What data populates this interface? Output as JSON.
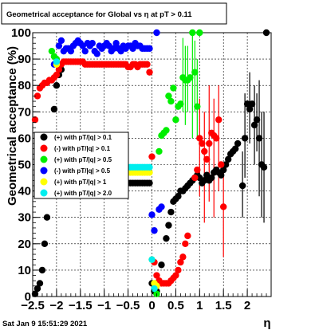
{
  "chart_data": {
    "type": "scatter",
    "title": "Geometrical acceptance for Global vs  η at pT > 0.11",
    "xlabel": "η",
    "ylabel": "Geometrical acceptance (%)",
    "xlim": [
      -2.5,
      2.5
    ],
    "ylim": [
      0,
      100
    ],
    "xticks": [
      -2.5,
      -2,
      -1.5,
      -1,
      -0.5,
      0,
      0.5,
      1,
      1.5,
      2
    ],
    "xtick_labels": [
      "−2.5",
      "−2",
      "−1.5",
      "−1",
      "−0.5",
      "0",
      "0.5",
      "1",
      "1.5",
      "2"
    ],
    "yticks": [
      0,
      10,
      20,
      30,
      40,
      50,
      60,
      70,
      80,
      90,
      100
    ],
    "ytick_labels": [
      "0",
      "10",
      "20",
      "30",
      "40",
      "50",
      "60",
      "70",
      "80",
      "90",
      "100"
    ],
    "grid": true,
    "legend_position": "left-middle",
    "series": [
      {
        "name": "(+) with pT/|q| > 0.1",
        "color": "#000000",
        "x": [
          -2.45,
          -2.4,
          -2.35,
          -2.3,
          -2.25,
          -2.2,
          -2.15,
          -2.1,
          -2.05,
          -2.0,
          -1.95,
          -1.9,
          -1.0,
          -0.9,
          -0.8,
          -0.7,
          -0.6,
          -0.5,
          -0.45,
          -0.4,
          -0.35,
          -0.3,
          -0.25,
          -0.2,
          -0.15,
          -0.1,
          -0.05,
          0.0,
          0.05,
          0.1,
          0.2,
          0.3,
          0.35,
          0.4,
          0.45,
          0.5,
          0.55,
          0.6,
          0.65,
          0.7,
          0.75,
          0.8,
          0.85,
          0.9,
          0.95,
          1.0,
          1.05,
          1.1,
          1.15,
          1.2,
          1.25,
          1.3,
          1.35,
          1.4,
          1.45,
          1.5,
          1.55,
          1.6,
          1.65,
          1.7,
          1.75,
          1.8,
          1.9,
          1.95,
          2.0,
          2.05,
          2.1,
          2.15,
          2.2,
          2.25,
          2.3,
          2.35,
          2.4
        ],
        "y": [
          1,
          3,
          5,
          10,
          20,
          30,
          45,
          60,
          71,
          80,
          84,
          86,
          44,
          44,
          44,
          44,
          44,
          43,
          43,
          43,
          43,
          43,
          43,
          43,
          43,
          43,
          43,
          5,
          2,
          2,
          12,
          22,
          27,
          32,
          36,
          37,
          38,
          40,
          40,
          41,
          42,
          43,
          44,
          45,
          46,
          45,
          43,
          44,
          46,
          44,
          45,
          47,
          48,
          47,
          46,
          48,
          50,
          52,
          54,
          55,
          56,
          58,
          42,
          60,
          73,
          71,
          73,
          65,
          67,
          60,
          50,
          49,
          100
        ]
      },
      {
        "name": "(-) with pT/|q| > 0.1",
        "color": "#ff0000",
        "x": [
          -2.45,
          -2.4,
          -2.35,
          -2.3,
          -2.25,
          -2.2,
          -2.15,
          -2.1,
          -2.05,
          -2.0,
          -1.95,
          -1.9,
          -1.85,
          -1.8,
          -1.75,
          -1.7,
          -1.65,
          -1.6,
          -1.55,
          -1.5,
          -1.45,
          -1.4,
          -1.35,
          -1.3,
          -1.25,
          -1.2,
          -1.15,
          -1.1,
          -1.05,
          -1.0,
          -0.95,
          -0.9,
          -0.85,
          -0.8,
          -0.75,
          -0.7,
          -0.65,
          -0.6,
          -0.55,
          -0.5,
          -0.45,
          -0.4,
          -0.35,
          -0.3,
          -0.25,
          -0.2,
          -0.15,
          -0.1,
          -0.05,
          0.0,
          0.05,
          0.1,
          0.15,
          0.2,
          0.25,
          0.3,
          0.35,
          0.4,
          0.45,
          0.5,
          0.55,
          0.6,
          0.65,
          0.7,
          0.75,
          0.9,
          0.95,
          1.0,
          1.05,
          1.1,
          1.15,
          1.2,
          1.25,
          1.3,
          1.35,
          1.4,
          1.45,
          1.5
        ],
        "y": [
          67,
          76,
          79,
          80,
          81,
          81,
          82,
          82,
          83,
          84,
          86,
          88,
          89,
          89,
          89,
          89,
          89,
          89,
          89,
          89,
          89,
          88,
          88,
          88,
          88,
          88,
          88,
          88,
          88,
          88,
          88,
          88,
          88,
          88,
          88,
          88,
          88,
          88,
          88,
          87,
          87,
          88,
          88,
          87,
          88,
          88,
          88,
          88,
          85,
          53,
          13,
          8,
          6,
          5,
          5,
          5,
          5,
          6,
          7,
          8,
          10,
          13,
          15,
          20,
          23,
          45,
          48,
          60,
          58,
          55,
          52,
          58,
          62,
          61,
          60,
          67,
          50,
          34
        ]
      },
      {
        "name": "(+) with pT/|q| > 0.5",
        "color": "#00ee00",
        "x": [
          -2.1,
          -2.05,
          -2.0,
          0.05,
          0.1,
          0.15,
          0.2,
          0.25,
          0.3,
          0.35,
          0.4,
          0.45,
          0.5,
          0.55,
          0.6,
          0.65,
          0.7,
          0.75,
          0.8,
          0.85,
          0.9,
          0.95,
          1.0
        ],
        "y": [
          93,
          91,
          90,
          3,
          1,
          55,
          61,
          62,
          63,
          76,
          74,
          79,
          67,
          72,
          73,
          83,
          82,
          82,
          83,
          100,
          85,
          72,
          100
        ]
      },
      {
        "name": "(-) with pT/|q| > 0.5",
        "color": "#0000ff",
        "x": [
          -2.05,
          -1.95,
          -1.9,
          -1.85,
          -1.8,
          -1.75,
          -1.7,
          -1.65,
          -1.6,
          -1.55,
          -1.5,
          -1.45,
          -1.4,
          -1.35,
          -1.3,
          -1.25,
          -1.2,
          -1.15,
          -1.1,
          -1.05,
          -1.0,
          -0.95,
          -0.9,
          -0.85,
          -0.8,
          -0.75,
          -0.7,
          -0.65,
          -0.6,
          -0.55,
          -0.5,
          -0.45,
          -0.4,
          -0.35,
          -0.3,
          -0.25,
          -0.2,
          -0.15,
          -0.1,
          -0.05,
          0.0,
          0.05,
          0.1,
          0.15,
          0.2
        ],
        "y": [
          88,
          95,
          97,
          93,
          94,
          94,
          93,
          95,
          96,
          97,
          96,
          95,
          93,
          96,
          95,
          96,
          93,
          92,
          95,
          94,
          95,
          96,
          95,
          93,
          94,
          96,
          94,
          93,
          95,
          94,
          95,
          95,
          94,
          96,
          95,
          95,
          94,
          94,
          94,
          94,
          31,
          25,
          100,
          33,
          34
        ]
      },
      {
        "name": "(+) with pT/|q| > 1",
        "color": "#ffff00",
        "x": [
          -2.0,
          -0.5,
          -0.45,
          -0.4,
          -0.35,
          -0.3,
          -0.25,
          -0.2,
          -0.15,
          -0.1,
          -0.05,
          0.0,
          0.05,
          0.1
        ],
        "y": [
          88,
          47,
          47,
          47,
          47,
          47,
          47,
          47,
          47,
          47,
          47,
          14,
          5,
          4
        ]
      },
      {
        "name": "(+) with pT/|q| > 2.0",
        "color": "#00eeee",
        "x": [
          -2.0,
          -0.5,
          -0.45,
          -0.4,
          -0.35,
          -0.3,
          -0.25,
          -0.2,
          -0.15,
          -0.1,
          -0.05,
          0.0,
          0.05
        ],
        "y": [
          89,
          49,
          49,
          49,
          49,
          49,
          49,
          49,
          49,
          49,
          49,
          14,
          3
        ]
      }
    ],
    "error_bars": [
      {
        "color": "#000000",
        "x": 1.95,
        "y0": 45,
        "y1": 77
      },
      {
        "color": "#000000",
        "x": 2.05,
        "y0": 58,
        "y1": 85
      },
      {
        "color": "#000000",
        "x": 2.15,
        "y0": 50,
        "y1": 80
      },
      {
        "color": "#000000",
        "x": 2.2,
        "y0": 55,
        "y1": 77
      },
      {
        "color": "#000000",
        "x": 2.25,
        "y0": 38,
        "y1": 82
      },
      {
        "color": "#000000",
        "x": 2.3,
        "y0": 30,
        "y1": 70
      },
      {
        "color": "#000000",
        "x": 2.35,
        "y0": 28,
        "y1": 70
      },
      {
        "color": "#000000",
        "x": 1.9,
        "y0": 30,
        "y1": 55
      },
      {
        "color": "#ff0000",
        "x": 1.0,
        "y0": 38,
        "y1": 75
      },
      {
        "color": "#ff0000",
        "x": 1.1,
        "y0": 28,
        "y1": 70
      },
      {
        "color": "#ff0000",
        "x": 1.2,
        "y0": 36,
        "y1": 80
      },
      {
        "color": "#ff0000",
        "x": 1.3,
        "y0": 30,
        "y1": 75
      },
      {
        "color": "#ff0000",
        "x": 1.4,
        "y0": 40,
        "y1": 80
      },
      {
        "color": "#ff0000",
        "x": 1.5,
        "y0": 15,
        "y1": 50
      },
      {
        "color": "#00ee00",
        "x": 0.65,
        "y0": 70,
        "y1": 98
      },
      {
        "color": "#00ee00",
        "x": 0.7,
        "y0": 65,
        "y1": 95
      },
      {
        "color": "#00ee00",
        "x": 0.75,
        "y0": 70,
        "y1": 95
      },
      {
        "color": "#00ee00",
        "x": 0.85,
        "y0": 60,
        "y1": 99
      },
      {
        "color": "#00ee00",
        "x": 0.9,
        "y0": 70,
        "y1": 97
      },
      {
        "color": "#00ee00",
        "x": 0.95,
        "y0": 60,
        "y1": 90
      }
    ]
  },
  "footer": {
    "date": "Sat Jan  9 15:51:29 2021"
  }
}
